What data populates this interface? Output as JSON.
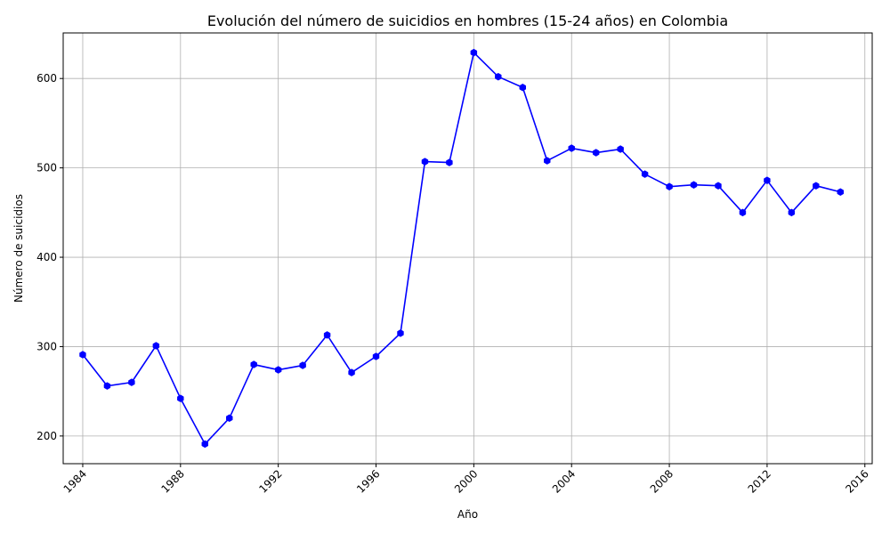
{
  "chart_data": {
    "type": "line",
    "title": "Evolución del número de suicidios en hombres (15-24 años) en Colombia",
    "xlabel": "Año",
    "ylabel": "Número de suicidios",
    "xlim": [
      1983.2,
      2016.3
    ],
    "ylim": [
      169,
      651
    ],
    "x_ticks": [
      1984,
      1988,
      1992,
      1996,
      2000,
      2004,
      2008,
      2012,
      2016
    ],
    "y_ticks": [
      200,
      300,
      400,
      500,
      600
    ],
    "grid": true,
    "line_color": "#0000ff",
    "grid_color": "#b0b0b0",
    "series": [
      {
        "x": [
          1984,
          1985,
          1986,
          1987,
          1988,
          1989,
          1990,
          1991,
          1992,
          1993,
          1994,
          1995,
          1996,
          1997,
          1998,
          1999,
          2000,
          2001,
          2002,
          2003,
          2004,
          2005,
          2006,
          2007,
          2008,
          2009,
          2010,
          2011,
          2012,
          2013,
          2014,
          2015
        ],
        "y": [
          291,
          256,
          260,
          301,
          242,
          191,
          220,
          280,
          274,
          279,
          313,
          271,
          289,
          315,
          507,
          506,
          629,
          602,
          590,
          508,
          522,
          517,
          521,
          493,
          479,
          481,
          480,
          450,
          486,
          450,
          480,
          473
        ]
      }
    ]
  }
}
